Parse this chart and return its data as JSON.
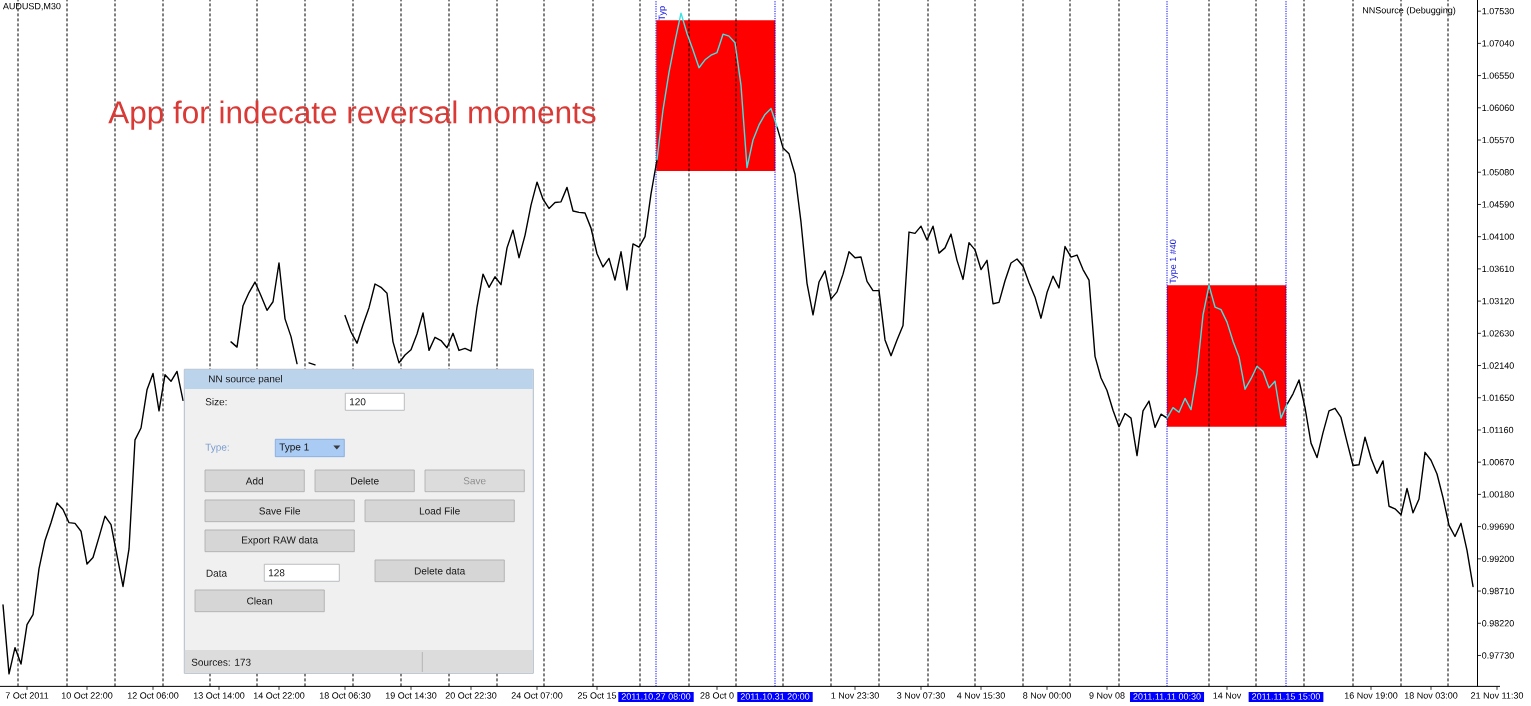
{
  "chart_data": [
    {
      "type": "line",
      "title": "AUDUSD,M30",
      "categories": [
        null,
        null,
        null,
        null,
        "7 Oct 2011",
        null,
        null,
        null,
        null,
        null,
        null,
        null,
        null,
        null,
        "10 Oct 22:00",
        null,
        null,
        null,
        null,
        null,
        null,
        null,
        null,
        null,
        null,
        "12 Oct 06:00",
        null,
        null,
        null,
        null,
        null,
        null,
        null,
        null,
        null,
        null,
        "13 Oct 14:00",
        null,
        null,
        null,
        null,
        null,
        null,
        null,
        null,
        null,
        "14 Oct 22:00",
        null,
        null,
        null,
        null,
        null,
        null,
        null,
        null,
        null,
        null,
        "18 Oct 06:30",
        null,
        null,
        null,
        null,
        null,
        null,
        null,
        null,
        null,
        null,
        "19 Oct 14:30",
        null,
        null,
        null,
        null,
        null,
        null,
        null,
        null,
        null,
        "20 Oct 22:30",
        null,
        null,
        null,
        null,
        null,
        null,
        null,
        null,
        null,
        null,
        "24 Oct 07:00",
        null,
        null,
        null,
        null,
        null,
        null,
        null,
        null,
        null,
        "25 Oct 15",
        null,
        null,
        null,
        null,
        null,
        null,
        null,
        null,
        null,
        null,
        null,
        null,
        null,
        null,
        null,
        null,
        null,
        null,
        null,
        "28 Oct 0",
        null,
        null,
        null,
        null,
        null,
        null,
        null,
        null,
        null,
        null,
        null,
        null,
        null,
        null,
        null,
        null,
        null,
        null,
        null,
        null,
        null,
        null,
        "1 Nov 23:30",
        null,
        null,
        null,
        null,
        null,
        null,
        null,
        null,
        null,
        null,
        "3 Nov 07:30",
        null,
        null,
        null,
        null,
        null,
        null,
        null,
        null,
        null,
        "4 Nov 15:30",
        null,
        null,
        null,
        null,
        null,
        null,
        null,
        null,
        null,
        null,
        "8 Nov 00:00",
        null,
        null,
        null,
        null,
        null,
        null,
        null,
        null,
        null,
        "9 Nov 08",
        null,
        null,
        null,
        null,
        null,
        null,
        null,
        null,
        null,
        null,
        null,
        null,
        null,
        null,
        null,
        null,
        null,
        null,
        null,
        "14 Nov",
        null,
        null,
        null,
        null,
        null,
        null,
        null,
        null,
        null,
        null,
        null,
        null,
        null,
        null,
        null,
        null,
        null,
        null,
        null,
        null,
        null,
        null,
        null,
        "16 Nov 19:00",
        null,
        null,
        null,
        null,
        null,
        null,
        null,
        null,
        null,
        "18 Nov 03:00",
        null,
        null,
        null,
        null,
        null,
        null,
        null,
        null,
        null,
        null,
        "21 Nov 11:30"
      ],
      "series": [
        {
          "color": "#000000",
          "values": [
            0.985,
            0.9745,
            0.9785,
            0.976,
            0.982,
            0.9835,
            0.9905,
            0.9948,
            0.9975,
            1.0005,
            0.9995,
            0.9975,
            0.9974,
            0.9962,
            0.9912,
            0.9922,
            0.9953,
            0.9985,
            0.9972,
            0.9925,
            0.9878,
            0.9935,
            1.0101,
            1.0119,
            1.0177,
            1.0202,
            1.0145,
            1.02,
            1.019,
            1.0205,
            1.0161,
            null,
            null,
            null,
            null,
            null,
            null,
            null,
            1.025,
            1.0242,
            1.0305,
            1.0325,
            1.0341,
            1.032,
            1.0298,
            1.0311,
            1.037,
            1.0285,
            1.0258,
            1.0217,
            null,
            1.0218,
            1.0215,
            null,
            null,
            null,
            null,
            1.029,
            1.0265,
            1.0248,
            1.0276,
            1.0302,
            1.0338,
            1.0333,
            1.0324,
            1.025,
            1.0218,
            1.023,
            1.0238,
            1.0262,
            1.0294,
            1.0237,
            1.0257,
            1.0252,
            1.0241,
            1.0263,
            1.0237,
            1.024,
            1.0236,
            1.0303,
            1.0353,
            1.0333,
            1.0349,
            1.0337,
            1.0393,
            1.042,
            1.0378,
            1.0412,
            1.0458,
            1.0493,
            1.0467,
            1.0453,
            1.0462,
            1.0463,
            1.0485,
            1.0449,
            1.0447,
            1.0446,
            1.0423,
            1.0384,
            1.0364,
            1.0377,
            1.0344,
            1.0387,
            1.0329,
            1.0399,
            1.0394,
            1.041,
            1.0475,
            1.0527,
            null,
            null,
            null,
            null,
            null,
            null,
            null,
            null,
            null,
            null,
            null,
            null,
            null,
            null,
            null,
            null,
            null,
            null,
            null,
            1.0577,
            1.0545,
            1.0536,
            1.0505,
            1.0432,
            1.0339,
            1.0291,
            1.0341,
            1.0358,
            1.0315,
            1.0326,
            1.0353,
            1.0387,
            1.0378,
            1.0379,
            1.0342,
            1.0328,
            1.0328,
            1.0253,
            1.0229,
            1.0253,
            1.0275,
            1.0417,
            1.0415,
            1.0426,
            1.0405,
            1.0426,
            1.0385,
            1.0393,
            1.0414,
            1.0374,
            1.0345,
            1.0401,
            1.039,
            1.036,
            1.0374,
            1.0308,
            1.031,
            1.0343,
            1.037,
            1.0376,
            1.0365,
            1.034,
            1.0318,
            1.0286,
            1.0325,
            1.035,
            1.0332,
            1.0395,
            1.0379,
            1.0382,
            1.036,
            1.0344,
            1.0228,
            1.0195,
            1.0176,
            1.0146,
            1.0121,
            1.0141,
            1.0134,
            1.0077,
            1.0145,
            1.016,
            1.012,
            1.014,
            1.0134,
            null,
            null,
            null,
            null,
            null,
            null,
            null,
            null,
            null,
            null,
            null,
            null,
            null,
            null,
            null,
            null,
            null,
            null,
            null,
            1.0155,
            1.0171,
            1.0192,
            1.015,
            1.0096,
            1.0074,
            1.0112,
            1.0145,
            1.0149,
            1.0135,
            1.0098,
            1.0062,
            1.0063,
            1.0105,
            1.0073,
            1.005,
            1.0069,
            1.0,
            0.9996,
            0.9987,
            1.0027,
            0.999,
            1.0011,
            1.0082,
            1.007,
            1.0049,
            1.0013,
            0.9971,
            0.9954,
            0.9974,
            0.9933,
            0.9878,
            null,
            null,
            null,
            null
          ]
        },
        {
          "color": "#3de3e3",
          "values": [
            null,
            null,
            null,
            null,
            null,
            null,
            null,
            null,
            null,
            null,
            null,
            null,
            null,
            null,
            null,
            null,
            null,
            null,
            null,
            null,
            null,
            null,
            null,
            null,
            null,
            null,
            null,
            null,
            null,
            null,
            null,
            null,
            null,
            null,
            null,
            null,
            null,
            null,
            null,
            null,
            null,
            null,
            null,
            null,
            null,
            null,
            null,
            null,
            null,
            null,
            null,
            null,
            null,
            null,
            null,
            null,
            null,
            null,
            null,
            null,
            null,
            null,
            null,
            null,
            null,
            null,
            null,
            null,
            null,
            null,
            null,
            null,
            null,
            null,
            null,
            null,
            null,
            null,
            null,
            null,
            null,
            null,
            null,
            null,
            null,
            null,
            null,
            null,
            null,
            null,
            null,
            null,
            null,
            null,
            null,
            null,
            null,
            null,
            null,
            null,
            null,
            null,
            null,
            null,
            null,
            null,
            null,
            null,
            null,
            1.0527,
            1.0603,
            1.066,
            1.0707,
            1.075,
            1.0719,
            1.0694,
            1.0667,
            1.0679,
            1.0686,
            1.069,
            1.0718,
            1.0715,
            1.0705,
            1.064,
            1.0515,
            1.0557,
            1.058,
            1.0596,
            1.0605,
            1.0577,
            null,
            null,
            null,
            null,
            null,
            null,
            null,
            null,
            null,
            null,
            null,
            null,
            null,
            null,
            null,
            null,
            null,
            null,
            null,
            null,
            null,
            null,
            null,
            null,
            null,
            null,
            null,
            null,
            null,
            null,
            null,
            null,
            null,
            null,
            null,
            null,
            null,
            null,
            null,
            null,
            null,
            null,
            null,
            null,
            null,
            null,
            null,
            null,
            null,
            null,
            null,
            null,
            null,
            null,
            null,
            null,
            null,
            null,
            null,
            null,
            null,
            null,
            null,
            null,
            1.0134,
            1.015,
            1.0143,
            1.0164,
            1.0147,
            1.0203,
            1.0291,
            1.0336,
            1.0303,
            1.0299,
            1.028,
            1.0251,
            1.0227,
            1.0178,
            1.0194,
            1.0213,
            1.0205,
            1.018,
            1.019,
            1.0134,
            1.0155,
            null,
            null,
            null,
            null,
            null,
            null,
            null,
            null,
            null,
            null,
            null,
            null,
            null,
            null,
            null,
            null,
            null,
            null,
            null,
            null,
            null,
            null,
            null,
            null,
            null,
            null,
            null,
            null,
            null,
            null,
            null,
            null,
            null,
            null,
            null
          ]
        }
      ],
      "ylim": [
        0.9726,
        1.077
      ],
      "yticks": [
        {
          "value": 0.9773,
          "label": "0.97730"
        },
        {
          "value": 0.9822,
          "label": "0.98220"
        },
        {
          "value": 0.9871,
          "label": "0.98710"
        },
        {
          "value": 0.992,
          "label": "0.99200"
        },
        {
          "value": 0.9969,
          "label": "0.99690"
        },
        {
          "value": 1.0018,
          "label": "1.00180"
        },
        {
          "value": 1.0067,
          "label": "1.00670"
        },
        {
          "value": 1.0116,
          "label": "1.01160"
        },
        {
          "value": 1.0165,
          "label": "1.01650"
        },
        {
          "value": 1.0214,
          "label": "1.02140"
        },
        {
          "value": 1.0263,
          "label": "1.02630"
        },
        {
          "value": 1.0312,
          "label": "1.03120"
        },
        {
          "value": 1.0361,
          "label": "1.03610"
        },
        {
          "value": 1.041,
          "label": "1.04100"
        },
        {
          "value": 1.0459,
          "label": "1.04590"
        },
        {
          "value": 1.0508,
          "label": "1.05080"
        },
        {
          "value": 1.0557,
          "label": "1.05570"
        },
        {
          "value": 1.0606,
          "label": "1.06060"
        },
        {
          "value": 1.0655,
          "label": "1.06550"
        },
        {
          "value": 1.0704,
          "label": "1.07040"
        },
        {
          "value": 1.0753,
          "label": "1.07530"
        }
      ],
      "bands": [
        {
          "axis": "y",
          "from": 1.051,
          "to": 1.0739,
          "color": "#ff0000"
        },
        {
          "axis": "y",
          "from": 1.0121,
          "to": 1.0336,
          "color": "#ff0000"
        }
      ],
      "annotations": [
        "App for indecate reversal moments",
        "NNSource (Debugging)",
        "Typ",
        "Type 1 #40",
        "2011.10.27 08:00",
        "2011.10.31 20:00",
        "2011.11.11 00:30",
        "2011.11.15 15:00"
      ]
    },
    {
      "type": "other",
      "title": "NN source panel",
      "annotations": [
        "Size:",
        "120",
        "Type:",
        "Type 1",
        "Add",
        "Delete",
        "Save",
        "Save File",
        "Load File",
        "Export RAW data",
        "Data",
        "128",
        "Delete data",
        "Clean",
        "Sources: 173"
      ]
    }
  ]
}
